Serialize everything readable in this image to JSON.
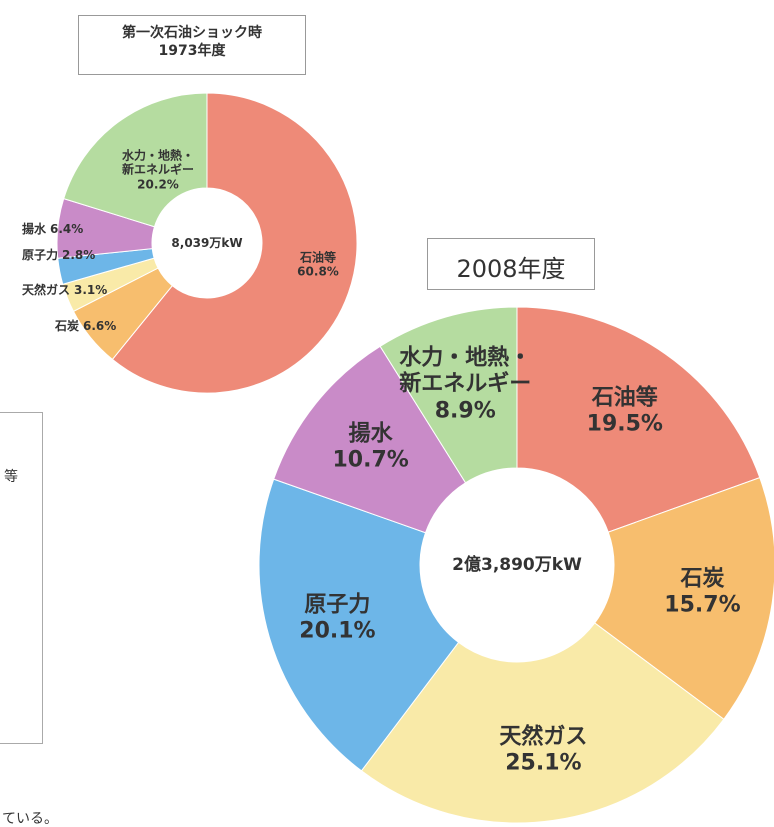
{
  "chart_data": [
    {
      "type": "pie",
      "title": "第一次石油ショック時",
      "subtitle": "1973年度",
      "center_label": "8,039万kW",
      "categories": [
        "石油等",
        "石炭",
        "天然ガス",
        "原子力",
        "揚水",
        "水力・地熱・\n新エネルギー"
      ],
      "values": [
        60.8,
        6.6,
        3.1,
        2.8,
        6.4,
        20.2
      ],
      "value_labels": [
        "60.8%",
        "6.6%",
        "3.1%",
        "2.8%",
        "6.4%",
        "20.2%"
      ],
      "colors": [
        "#ee8a78",
        "#f7be6e",
        "#f9eaa8",
        "#6db6e8",
        "#c98bc8",
        "#b5dca0"
      ]
    },
    {
      "type": "pie",
      "title": "2008年度",
      "center_label": "2億3,890万kW",
      "categories": [
        "石油等",
        "石炭",
        "天然ガス",
        "原子力",
        "揚水",
        "水力・地熱・\n新エネルギー"
      ],
      "values": [
        19.5,
        15.7,
        25.1,
        20.1,
        10.7,
        8.9
      ],
      "value_labels": [
        "19.5%",
        "15.7%",
        "25.1%",
        "20.1%",
        "10.7%",
        "8.9%"
      ],
      "colors": [
        "#ee8a78",
        "#f7be6e",
        "#f9eaa8",
        "#6db6e8",
        "#c98bc8",
        "#b5dca0"
      ]
    }
  ],
  "page_text": [
    "等",
    "ている。"
  ]
}
